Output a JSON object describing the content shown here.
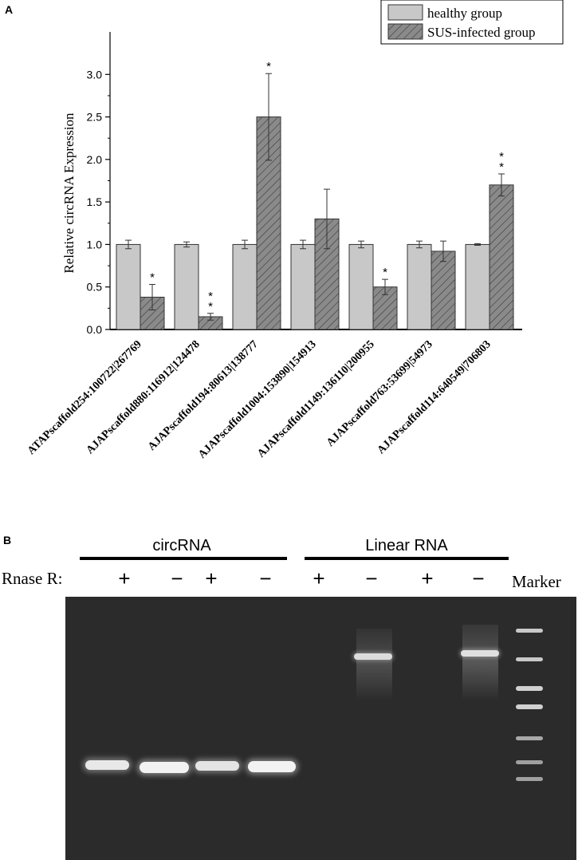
{
  "panel_a": {
    "label": "A"
  },
  "panel_b": {
    "label": "B",
    "group_circ": "circRNA",
    "group_linear": "Linear RNA",
    "rnase_label": "Rnase R:",
    "marker_label": "Marker",
    "lanes": [
      "+",
      "−",
      "+",
      "−",
      "+",
      "−",
      "+",
      "−"
    ],
    "gel": {
      "background": "#2a2a2a",
      "bands_circ_lanes": [
        1,
        2,
        3,
        4
      ],
      "bands_linear_lanes": [
        6,
        8
      ],
      "marker_lane": 9
    }
  },
  "colors": {
    "healthy": "#c8c8c8",
    "sus": "#8a8a8a",
    "axis": "#000000"
  },
  "chart_data": {
    "type": "bar",
    "title": "",
    "xlabel": "",
    "ylabel": "Relative circRNA Expression",
    "ylim": [
      0,
      3.5
    ],
    "yticks": [
      "0.0",
      "0.5",
      "1.0",
      "1.5",
      "2.0",
      "2.5",
      "3.0"
    ],
    "legend_position": "top-right",
    "categories": [
      "ATAPscaffold254:100722|267769",
      "AJAPscaffold880:116912|124478",
      "AJAPscaffold194:80613|138777",
      "AJAPscaffold1004:153890|154913",
      "AJAPscaffold1149:136110|200955",
      "AJAPscaffold763:53699|54973",
      "AJAPscaffold114:640549|706803"
    ],
    "series": [
      {
        "name": "healthy group",
        "values": [
          1.0,
          1.0,
          1.0,
          1.0,
          1.0,
          1.0,
          1.0
        ],
        "errors": [
          0.05,
          0.03,
          0.05,
          0.05,
          0.04,
          0.04,
          0.01
        ],
        "significance": [
          "",
          "",
          "",
          "",
          "",
          "",
          ""
        ]
      },
      {
        "name": "SUS-infected group",
        "values": [
          0.38,
          0.15,
          2.5,
          1.3,
          0.5,
          0.92,
          1.7
        ],
        "errors": [
          0.15,
          0.04,
          0.51,
          0.35,
          0.09,
          0.12,
          0.13
        ],
        "significance": [
          "*",
          "* *",
          "*",
          "",
          "*",
          "",
          "* *"
        ]
      }
    ]
  }
}
